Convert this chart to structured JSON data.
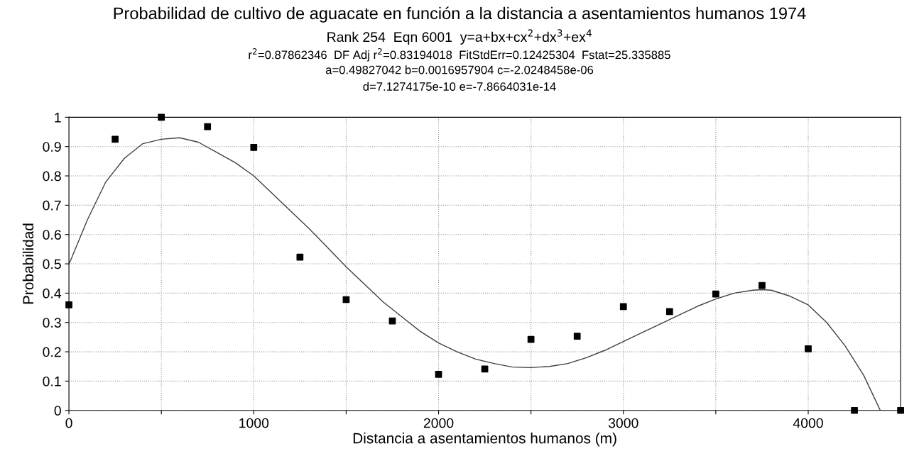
{
  "chart_data": {
    "type": "scatter",
    "title": "Probabilidad de cultivo de aguacate en función a la distancia a asentamientos humanos 1974",
    "subtitle": "Rank 254  Eqn 6001  y=a+bx+cx$^{2}$+dx$^{3}$+ex$^{4}$",
    "annotations": [
      "r$^{2}$=0.87862346  DF Adj r$^{2}$=0.83194018  FitStdErr=0.12425304  Fstat=25.335885",
      "a=0.49827042 b=0.0016957904 c=-2.0248458e-06",
      "d=7.1274175e-10 e=-7.8664031e-14"
    ],
    "xlabel": "Distancia a asentamientos humanos (m)",
    "ylabel": "Probabilidad",
    "xlim": [
      0,
      4500
    ],
    "xticks": [
      0,
      1000,
      2000,
      3000,
      4000,
      {
        "value": 500,
        "label": null
      },
      {
        "value": 1500,
        "label": null
      },
      {
        "value": 2500,
        "label": null
      },
      {
        "value": 3500,
        "label": null
      }
    ],
    "ylim": [
      0,
      1
    ],
    "yticks": [
      0,
      0.1,
      0.2,
      0.3,
      0.4,
      0.5,
      0.6,
      0.7,
      0.8,
      0.9,
      1
    ],
    "grid": true,
    "legend": false,
    "series": [
      {
        "color": "#000000",
        "marker": "square",
        "x": [
          0,
          250,
          500,
          750,
          1000,
          1250,
          1500,
          1750,
          2000,
          2250,
          2500,
          2750,
          3000,
          3250,
          3500,
          3750,
          4000,
          4250,
          4500
        ],
        "values": [
          0.36,
          0.925,
          1.0,
          0.968,
          0.897,
          0.523,
          0.378,
          0.305,
          0.123,
          0.141,
          0.242,
          0.253,
          0.354,
          0.337,
          0.397,
          0.426,
          0.21,
          0,
          0
        ]
      },
      {
        "type": "line",
        "color": "#404040",
        "marker": "none",
        "line_style": "solid",
        "x": [
          0,
          100,
          200,
          300,
          400,
          500,
          600,
          700,
          800,
          900,
          1000,
          1100,
          1200,
          1300,
          1400,
          1500,
          1600,
          1700,
          1800,
          1900,
          2000,
          2100,
          2200,
          2300,
          2400,
          2500,
          2600,
          2700,
          2800,
          2900,
          3000,
          3100,
          3200,
          3300,
          3400,
          3500,
          3600,
          3700,
          3750,
          3800,
          3900,
          4000,
          4100,
          4200,
          4300,
          4390
        ],
        "values": [
          0.498,
          0.65,
          0.78,
          0.86,
          0.91,
          0.925,
          0.93,
          0.915,
          0.88,
          0.845,
          0.8,
          0.74,
          0.68,
          0.62,
          0.555,
          0.49,
          0.43,
          0.37,
          0.32,
          0.27,
          0.23,
          0.2,
          0.175,
          0.16,
          0.148,
          0.146,
          0.15,
          0.16,
          0.18,
          0.205,
          0.235,
          0.265,
          0.295,
          0.325,
          0.355,
          0.38,
          0.4,
          0.41,
          0.412,
          0.41,
          0.39,
          0.36,
          0.3,
          0.22,
          0.12,
          0.0
        ]
      }
    ]
  }
}
